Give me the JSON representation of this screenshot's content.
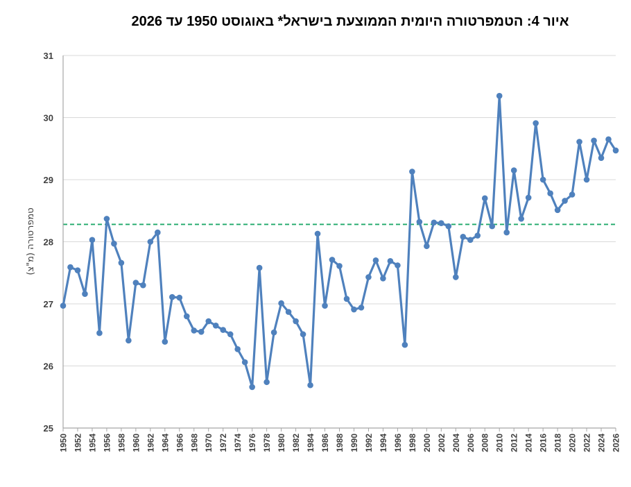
{
  "chart_data": {
    "type": "line",
    "title": "איור 4: הטמפרטורה היומית הממוצעת בישראל* באוגוסט 1950 עד 2026",
    "xlabel": "",
    "ylabel": "טמפרטורה (מ\"צ)",
    "ylim": [
      25,
      31
    ],
    "y_ticks": [
      25,
      26,
      27,
      28,
      29,
      30,
      31
    ],
    "x_tick_labels": [
      "1950",
      "1952",
      "1954",
      "1956",
      "1958",
      "1960",
      "1962",
      "1964",
      "1966",
      "1968",
      "1970",
      "1972",
      "1974",
      "1976",
      "1978",
      "1980",
      "1982",
      "1984",
      "1986",
      "1988",
      "1990",
      "1992",
      "1994",
      "1996",
      "1998",
      "2000",
      "2002",
      "2004",
      "2006",
      "2008",
      "2010",
      "2012",
      "2014",
      "2016",
      "2018",
      "2020",
      "2022",
      "2024",
      "2026"
    ],
    "grid": true,
    "x": [
      1950,
      1951,
      1952,
      1953,
      1954,
      1955,
      1956,
      1957,
      1958,
      1959,
      1960,
      1961,
      1962,
      1963,
      1964,
      1965,
      1966,
      1967,
      1968,
      1969,
      1970,
      1971,
      1972,
      1973,
      1974,
      1975,
      1976,
      1977,
      1978,
      1979,
      1980,
      1981,
      1982,
      1983,
      1984,
      1985,
      1986,
      1987,
      1988,
      1989,
      1990,
      1991,
      1992,
      1993,
      1994,
      1995,
      1996,
      1997,
      1998,
      1999,
      2000,
      2001,
      2002,
      2003,
      2004,
      2005,
      2006,
      2007,
      2008,
      2009,
      2010,
      2011,
      2012,
      2013,
      2014,
      2015,
      2016,
      2017,
      2018,
      2019,
      2020,
      2021,
      2022,
      2023,
      2024,
      2025,
      2026
    ],
    "series": [
      {
        "color": "#4f81bd",
        "values": [
          26.97,
          27.59,
          27.54,
          27.16,
          28.03,
          26.53,
          28.37,
          27.97,
          27.66,
          26.41,
          27.34,
          27.3,
          28.0,
          28.15,
          26.39,
          27.11,
          27.1,
          26.8,
          26.57,
          26.55,
          26.72,
          26.65,
          26.58,
          26.51,
          26.27,
          26.06,
          25.66,
          27.58,
          25.74,
          26.54,
          27.01,
          26.87,
          26.72,
          26.51,
          25.69,
          28.13,
          26.97,
          27.71,
          27.61,
          27.08,
          26.91,
          26.94,
          27.43,
          27.7,
          27.41,
          27.69,
          27.62,
          26.34,
          29.13,
          28.32,
          27.93,
          28.31,
          28.3,
          28.25,
          27.43,
          28.08,
          28.03,
          28.1,
          28.7,
          28.25,
          30.35,
          28.15,
          29.15,
          28.37,
          28.71,
          29.91,
          29.0,
          28.78,
          28.51,
          28.66,
          28.76,
          29.61,
          29.0,
          29.63,
          29.35,
          29.65,
          29.47
        ]
      }
    ],
    "reference_line": {
      "value": 28.28,
      "color": "#1ea86a",
      "style": "dashed"
    }
  }
}
